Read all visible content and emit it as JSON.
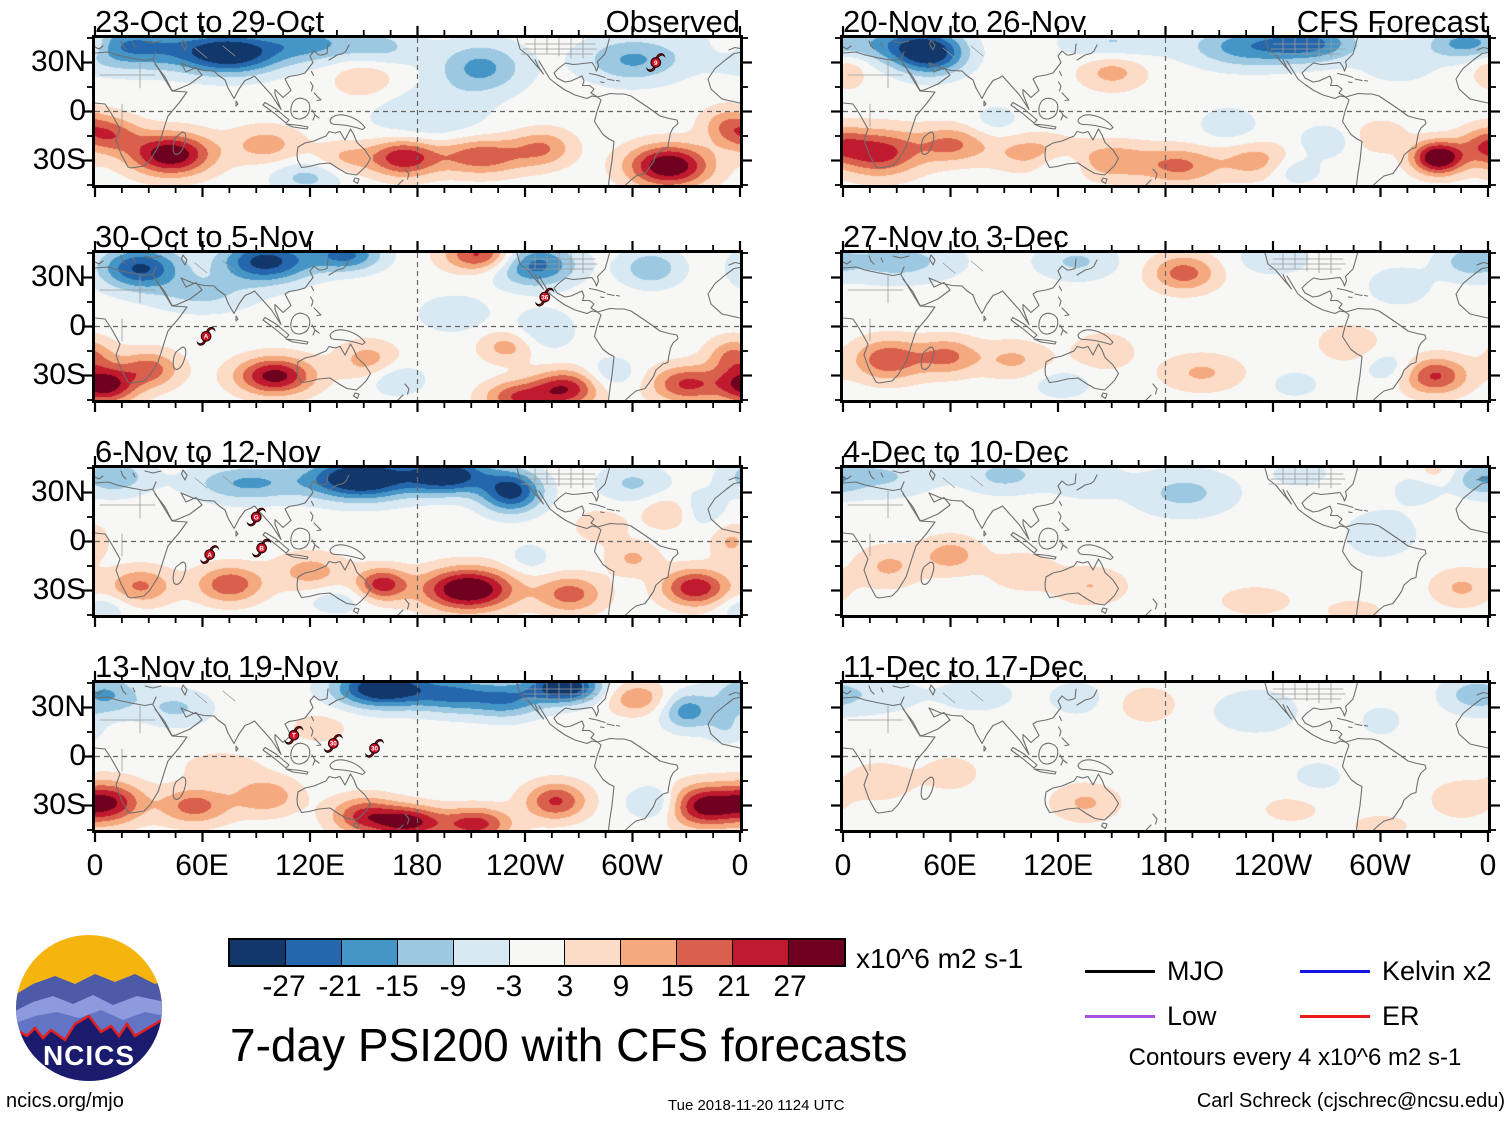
{
  "title": "7-day PSI200 with CFS forecasts",
  "branding": {
    "logo_text": "NCICS"
  },
  "footer": {
    "left": "ncics.org/mjo",
    "center": "Tue 2018-11-20 1124 UTC",
    "right": "Carl Schreck (cjschrec@ncsu.edu)"
  },
  "chart_data": {
    "type": "filled_contour_map_grid",
    "units": "x10^6 m2 s-1",
    "contour_note": "Contours every 4 x10^6 m2 s-1",
    "map_domain": {
      "lon_range": [
        0,
        360
      ],
      "lat_range": [
        -45,
        45
      ]
    },
    "x_axis": {
      "ticks": [
        "0",
        "60E",
        "120E",
        "180",
        "120W",
        "60W",
        "0"
      ],
      "tick_lons": [
        0,
        60,
        120,
        180,
        240,
        300,
        360
      ]
    },
    "y_axis": {
      "ticks": [
        "30N",
        "0",
        "30S"
      ],
      "tick_lats": [
        30,
        0,
        -30
      ]
    },
    "colorbar": {
      "levels": [
        -27,
        -21,
        -15,
        -9,
        -3,
        3,
        9,
        15,
        21,
        27
      ],
      "tick_labels": [
        "-27",
        "-21",
        "-15",
        "-9",
        "-3",
        "3",
        "9",
        "15",
        "21",
        "27"
      ],
      "colors": [
        "#12386b",
        "#2467ad",
        "#4596c6",
        "#9cc9e1",
        "#d8e9f3",
        "#f7f7f5",
        "#fcdcc7",
        "#f5a97e",
        "#d8604c",
        "#c01a2e",
        "#70001f"
      ],
      "units_label": "x10^6 m2 s-1"
    },
    "legend": {
      "entries": [
        {
          "label": "MJO",
          "color": "#000000"
        },
        {
          "label": "Kelvin x2",
          "color": "#1414e6"
        },
        {
          "label": "Low",
          "color": "#a952e0"
        },
        {
          "label": "ER",
          "color": "#ec1c1c"
        }
      ],
      "note": "Contours every 4 x10^6 m2 s-1"
    },
    "panels": [
      {
        "title": "23-Oct to 29-Oct",
        "corner": "Observed",
        "cyclones": [
          {
            "lon": 313,
            "lat": 30,
            "label": "9"
          }
        ],
        "anomaly_centers": [
          [
            20,
            40,
            24,
            10,
            -22
          ],
          [
            75,
            36,
            20,
            9,
            -34
          ],
          [
            120,
            42,
            18,
            8,
            -16
          ],
          [
            160,
            40,
            15,
            8,
            -10
          ],
          [
            215,
            27,
            17,
            11,
            -17
          ],
          [
            300,
            32,
            20,
            10,
            -16
          ],
          [
            185,
            -3,
            22,
            12,
            -9
          ],
          [
            118,
            -40,
            14,
            7,
            -11
          ],
          [
            150,
            20,
            12,
            8,
            9
          ],
          [
            355,
            42,
            8,
            6,
            14
          ],
          [
            42,
            -26,
            16,
            9,
            33
          ],
          [
            8,
            -14,
            12,
            8,
            18
          ],
          [
            95,
            -20,
            14,
            8,
            12
          ],
          [
            140,
            -28,
            12,
            7,
            10
          ],
          [
            172,
            -28,
            13,
            8,
            26
          ],
          [
            215,
            -27,
            18,
            8,
            20
          ],
          [
            250,
            -22,
            12,
            8,
            14
          ],
          [
            320,
            -33,
            16,
            9,
            34
          ],
          [
            352,
            -8,
            10,
            8,
            12
          ]
        ]
      },
      {
        "title": "20-Nov to 26-Nov",
        "corner": "CFS Forecast",
        "cyclones": [],
        "anomaly_centers": [
          [
            48,
            36,
            14,
            9,
            -32
          ],
          [
            25,
            42,
            18,
            8,
            -14
          ],
          [
            150,
            42,
            20,
            8,
            -10
          ],
          [
            225,
            40,
            22,
            9,
            -18
          ],
          [
            262,
            42,
            18,
            8,
            -20
          ],
          [
            345,
            42,
            14,
            7,
            -16
          ],
          [
            310,
            30,
            14,
            8,
            -8
          ],
          [
            122,
            -32,
            10,
            6,
            -9
          ],
          [
            252,
            -36,
            10,
            6,
            -8
          ],
          [
            215,
            -8,
            12,
            8,
            -7
          ],
          [
            268,
            -18,
            10,
            7,
            -8
          ],
          [
            85,
            -5,
            10,
            7,
            -6
          ],
          [
            150,
            25,
            13,
            8,
            12
          ],
          [
            2,
            25,
            8,
            8,
            8
          ],
          [
            20,
            -25,
            16,
            10,
            24
          ],
          [
            60,
            -20,
            14,
            8,
            16
          ],
          [
            105,
            -25,
            16,
            8,
            12
          ],
          [
            150,
            -30,
            16,
            8,
            14
          ],
          [
            188,
            -33,
            15,
            8,
            16
          ],
          [
            230,
            -30,
            14,
            8,
            12
          ],
          [
            332,
            -28,
            10,
            7,
            36
          ],
          [
            300,
            -15,
            10,
            7,
            8
          ],
          [
            358,
            -20,
            10,
            8,
            14
          ]
        ]
      },
      {
        "title": "30-Oct to 5-Nov",
        "corner": "",
        "cyclones": [
          {
            "lon": 62,
            "lat": -6,
            "label": "A"
          },
          {
            "lon": 251,
            "lat": 18,
            "label": "36"
          }
        ],
        "anomaly_centers": [
          [
            25,
            36,
            16,
            9,
            -28
          ],
          [
            95,
            40,
            18,
            9,
            -30
          ],
          [
            140,
            44,
            14,
            7,
            -22
          ],
          [
            60,
            20,
            20,
            8,
            -10
          ],
          [
            245,
            38,
            16,
            9,
            -24
          ],
          [
            310,
            36,
            12,
            8,
            -14
          ],
          [
            200,
            8,
            14,
            8,
            -8
          ],
          [
            250,
            -2,
            12,
            9,
            -9
          ],
          [
            168,
            -32,
            11,
            7,
            -9
          ],
          [
            288,
            -28,
            10,
            7,
            -8
          ],
          [
            215,
            44,
            14,
            7,
            24
          ],
          [
            5,
            -36,
            12,
            8,
            30
          ],
          [
            30,
            -26,
            12,
            8,
            18
          ],
          [
            100,
            -30,
            15,
            8,
            30
          ],
          [
            152,
            -20,
            12,
            8,
            12
          ],
          [
            230,
            -12,
            11,
            7,
            12
          ],
          [
            235,
            -43,
            13,
            7,
            20
          ],
          [
            262,
            -38,
            13,
            8,
            26
          ],
          [
            330,
            -35,
            14,
            8,
            22
          ],
          [
            356,
            -18,
            10,
            8,
            16
          ]
        ]
      },
      {
        "title": "27-Nov to 3-Dec",
        "corner": "",
        "cyclones": [],
        "anomaly_centers": [
          [
            30,
            40,
            24,
            9,
            -12
          ],
          [
            130,
            40,
            16,
            8,
            -10
          ],
          [
            240,
            42,
            14,
            7,
            -8
          ],
          [
            348,
            40,
            12,
            8,
            -10
          ],
          [
            310,
            25,
            12,
            8,
            -8
          ],
          [
            122,
            -35,
            11,
            6,
            -8
          ],
          [
            252,
            -35,
            10,
            6,
            -6
          ],
          [
            305,
            -25,
            10,
            7,
            -8
          ],
          [
            190,
            33,
            13,
            8,
            18
          ],
          [
            25,
            -20,
            14,
            9,
            20
          ],
          [
            58,
            -18,
            12,
            8,
            16
          ],
          [
            95,
            -20,
            14,
            8,
            10
          ],
          [
            145,
            -15,
            12,
            8,
            8
          ],
          [
            200,
            -28,
            16,
            8,
            10
          ],
          [
            282,
            -10,
            12,
            8,
            8
          ],
          [
            330,
            -30,
            13,
            8,
            22
          ]
        ]
      },
      {
        "title": "6-Nov to 12-Nov",
        "corner": "",
        "cyclones": [
          {
            "lon": 90,
            "lat": 15,
            "label": "G"
          },
          {
            "lon": 64,
            "lat": -8,
            "label": "A"
          },
          {
            "lon": 93,
            "lat": -4,
            "label": "B"
          }
        ],
        "anomaly_centers": [
          [
            148,
            39,
            20,
            9,
            -38
          ],
          [
            196,
            41,
            16,
            8,
            -34
          ],
          [
            232,
            31,
            12,
            9,
            -30
          ],
          [
            85,
            36,
            22,
            8,
            -16
          ],
          [
            10,
            40,
            14,
            8,
            -14
          ],
          [
            300,
            36,
            14,
            8,
            -10
          ],
          [
            338,
            20,
            10,
            8,
            -8
          ],
          [
            3,
            -41,
            10,
            6,
            -9
          ],
          [
            135,
            -36,
            12,
            6,
            -7
          ],
          [
            242,
            -10,
            9,
            7,
            -6
          ],
          [
            320,
            18,
            10,
            7,
            10
          ],
          [
            355,
            0,
            8,
            8,
            10
          ],
          [
            282,
            10,
            10,
            7,
            8
          ],
          [
            25,
            -27,
            13,
            8,
            16
          ],
          [
            75,
            -26,
            13,
            8,
            20
          ],
          [
            120,
            -18,
            14,
            8,
            12
          ],
          [
            160,
            -26,
            10,
            7,
            24
          ],
          [
            208,
            -29,
            18,
            9,
            36
          ],
          [
            265,
            -32,
            13,
            8,
            18
          ],
          [
            335,
            -28,
            13,
            8,
            26
          ],
          [
            300,
            -10,
            10,
            7,
            10
          ]
        ]
      },
      {
        "title": "4-Dec to 10-Dec",
        "corner": "",
        "cyclones": [],
        "anomaly_centers": [
          [
            20,
            40,
            22,
            9,
            -10
          ],
          [
            90,
            41,
            16,
            8,
            -11
          ],
          [
            135,
            38,
            14,
            8,
            -8
          ],
          [
            190,
            30,
            20,
            10,
            -11
          ],
          [
            355,
            38,
            10,
            7,
            -10
          ],
          [
            300,
            5,
            14,
            10,
            -8
          ],
          [
            320,
            32,
            10,
            7,
            -6
          ],
          [
            255,
            42,
            12,
            6,
            -6
          ],
          [
            25,
            -15,
            13,
            9,
            10
          ],
          [
            60,
            -8,
            12,
            8,
            12
          ],
          [
            100,
            -18,
            13,
            8,
            8
          ],
          [
            138,
            -27,
            14,
            8,
            9
          ],
          [
            230,
            -36,
            16,
            7,
            6
          ],
          [
            345,
            -28,
            12,
            8,
            10
          ],
          [
            330,
            43,
            8,
            5,
            6
          ],
          [
            285,
            -42,
            12,
            5,
            6
          ]
        ]
      },
      {
        "title": "13-Nov to 19-Nov",
        "corner": "",
        "cyclones": [
          {
            "lon": 111,
            "lat": 13,
            "label": "T"
          },
          {
            "lon": 133,
            "lat": 8,
            "label": "30"
          },
          {
            "lon": 156,
            "lat": 5,
            "label": "30"
          }
        ],
        "anomaly_centers": [
          [
            5,
            38,
            14,
            9,
            -16
          ],
          [
            45,
            30,
            14,
            8,
            -10
          ],
          [
            160,
            42,
            18,
            8,
            -36
          ],
          [
            200,
            38,
            16,
            8,
            -20
          ],
          [
            230,
            35,
            14,
            8,
            -18
          ],
          [
            262,
            43,
            14,
            7,
            -34
          ],
          [
            330,
            28,
            10,
            8,
            -18
          ],
          [
            352,
            18,
            8,
            7,
            -8
          ],
          [
            312,
            -28,
            10,
            7,
            -12
          ],
          [
            302,
            36,
            12,
            7,
            14
          ],
          [
            125,
            18,
            12,
            7,
            6
          ],
          [
            70,
            -6,
            16,
            7,
            6
          ],
          [
            8,
            -28,
            13,
            9,
            26
          ],
          [
            55,
            -30,
            14,
            8,
            18
          ],
          [
            95,
            -24,
            13,
            8,
            14
          ],
          [
            150,
            -36,
            13,
            8,
            22
          ],
          [
            175,
            -40,
            13,
            7,
            28
          ],
          [
            212,
            -41,
            14,
            7,
            24
          ],
          [
            257,
            -27,
            12,
            8,
            22
          ],
          [
            340,
            -30,
            14,
            9,
            30
          ]
        ]
      },
      {
        "title": "11-Dec to 17-Dec",
        "corner": "",
        "cyclones": [],
        "anomaly_centers": [
          [
            15,
            38,
            20,
            9,
            -7
          ],
          [
            75,
            38,
            16,
            8,
            -6
          ],
          [
            130,
            36,
            12,
            8,
            -6
          ],
          [
            230,
            28,
            18,
            10,
            -7
          ],
          [
            350,
            38,
            12,
            8,
            -9
          ],
          [
            300,
            22,
            10,
            8,
            -5
          ],
          [
            265,
            -12,
            12,
            8,
            -5
          ],
          [
            170,
            32,
            12,
            8,
            7
          ],
          [
            20,
            -15,
            13,
            8,
            8
          ],
          [
            60,
            -10,
            12,
            8,
            6
          ],
          [
            135,
            -28,
            13,
            8,
            10
          ],
          [
            250,
            -32,
            14,
            7,
            5
          ],
          [
            345,
            -26,
            12,
            8,
            8
          ],
          [
            300,
            -42,
            12,
            5,
            6
          ]
        ]
      }
    ]
  }
}
